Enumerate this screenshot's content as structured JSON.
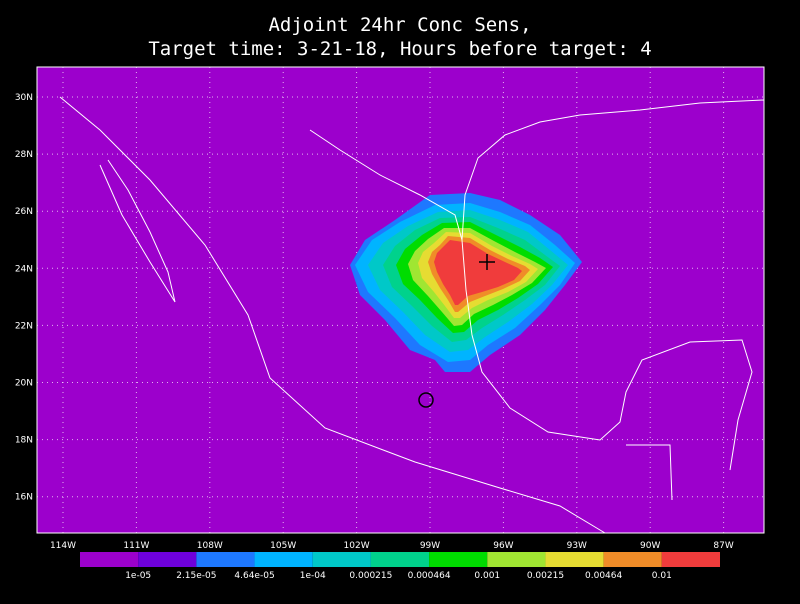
{
  "title": [
    "Adjoint 24hr Conc Sens,",
    "Target time: 3-21-18, Hours before target: 4"
  ],
  "map": {
    "lon_labels": [
      "114W",
      "111W",
      "108W",
      "105W",
      "102W",
      "99W",
      "96W",
      "93W",
      "90W",
      "87W"
    ],
    "lat_labels": [
      "30N",
      "28N",
      "26N",
      "24N",
      "22N",
      "20N",
      "18N",
      "16N"
    ]
  },
  "colorbar": {
    "colors": [
      "#9c00cc",
      "#6e00dc",
      "#1e78ff",
      "#00b4ff",
      "#00c8c8",
      "#00d28c",
      "#00dc00",
      "#a0e632",
      "#e6dc32",
      "#f08c28",
      "#f03c3c",
      "#f00082"
    ],
    "labels": [
      "1e-05",
      "2.15e-05",
      "4.64e-05",
      "1e-04",
      "0.000215",
      "0.000464",
      "0.001",
      "0.00215",
      "0.00464",
      "0.01"
    ]
  }
}
